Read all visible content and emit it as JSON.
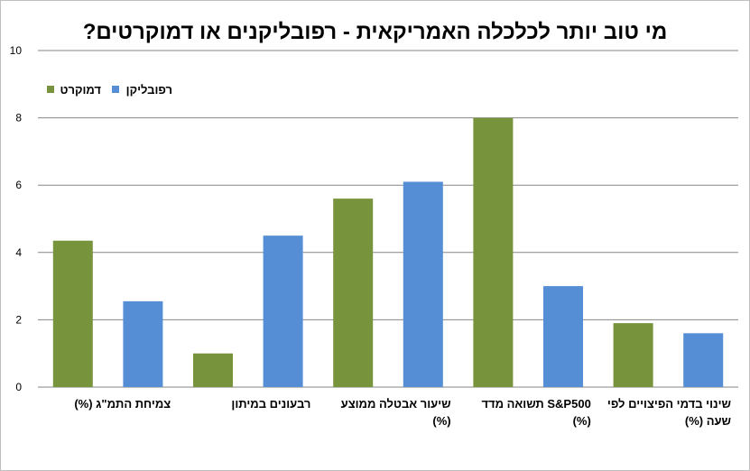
{
  "chart_data": {
    "type": "bar",
    "title": "מי טוב יותר לכלכלה האמריקאית - רפובליקנים או דמוקרטים?",
    "categories": [
      [
        "צמיחת התמ\"ג (%)"
      ],
      [
        "רבעונים במיתון"
      ],
      [
        "שיעור אבטלה ממוצע",
        "(%)"
      ],
      [
        "S&P500 תשואה מדד",
        "(%)"
      ],
      [
        "שינוי בדמי הפיצויים לפי",
        "שעה (%)"
      ]
    ],
    "series": [
      {
        "name": "דמוקרט",
        "color": "#77933c",
        "values": [
          4.35,
          1.0,
          5.6,
          8.0,
          1.9
        ]
      },
      {
        "name": "רפובליקן",
        "color": "#558ed5",
        "values": [
          2.55,
          4.5,
          6.1,
          3.0,
          1.6
        ]
      }
    ],
    "ylim": [
      0,
      10
    ],
    "yticks": [
      0,
      2,
      4,
      6,
      8,
      10
    ],
    "grid": true,
    "legend_position": "top-left"
  }
}
